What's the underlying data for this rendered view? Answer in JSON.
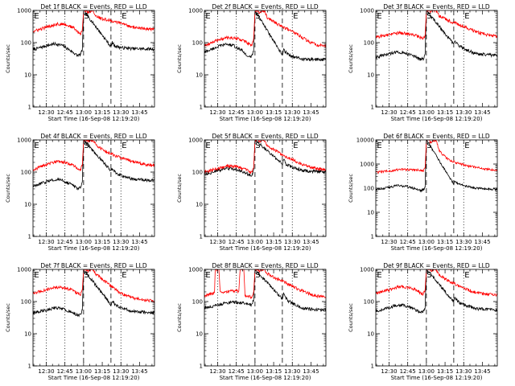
{
  "figure": {
    "time_labels": [
      "12:30",
      "12:45",
      "13:00",
      "13:15",
      "13:30",
      "13:45"
    ],
    "x_tick_minutes": [
      30,
      45,
      60,
      75,
      90,
      105
    ],
    "x_range_minutes": [
      19.33,
      117
    ],
    "dotted_lines_minutes": [
      30,
      45,
      90
    ],
    "dashed_lines_minutes": [
      60,
      82
    ],
    "region_markers": [
      {
        "label": "E",
        "minutes": 19.6
      },
      {
        "label": "S",
        "minutes": 59.6
      },
      {
        "label": "E",
        "minutes": 90.0
      }
    ],
    "ylabel": "Counts/sec",
    "xlabel": "Start Time (16-Sep-08 12:19:20)",
    "colors": {
      "events": "#000000",
      "lld": "#ff0000",
      "axes": "#000000"
    }
  },
  "chart_data": [
    {
      "type": "line",
      "title": "Det 1f BLACK = Events, RED = LLD",
      "yscale": "log",
      "ylim": [
        1,
        1000
      ],
      "ytick_labels": [
        "1",
        "10",
        "100",
        "1000"
      ],
      "series": [
        {
          "name": "BLACK = Events",
          "color": "#000000",
          "x": [
            19.3,
            30,
            37,
            43,
            50,
            55,
            57.5,
            59,
            60,
            82,
            83,
            85,
            90,
            100,
            117
          ],
          "y": [
            60,
            80,
            92,
            82,
            55,
            40,
            42,
            60,
            1000,
            75,
            100,
            80,
            70,
            65,
            63
          ]
        },
        {
          "name": "RED = LLD",
          "color": "#ff0000",
          "x": [
            19.3,
            30,
            38,
            45,
            52,
            56,
            57.5,
            59,
            60,
            62,
            63,
            67,
            68,
            70,
            75,
            80,
            85,
            90,
            95,
            100,
            105,
            110,
            117
          ],
          "y": [
            220,
            300,
            380,
            370,
            290,
            200,
            180,
            260,
            1000,
            1000,
            900,
            1000,
            950,
            650,
            550,
            500,
            450,
            400,
            350,
            300,
            280,
            270,
            260
          ]
        }
      ]
    },
    {
      "type": "line",
      "title": "Det 2f BLACK = Events, RED = LLD",
      "yscale": "log",
      "ylim": [
        1,
        1000
      ],
      "ytick_labels": [
        "1",
        "10",
        "100",
        "1000"
      ],
      "series": [
        {
          "name": "BLACK = Events",
          "color": "#000000",
          "x": [
            19.3,
            30,
            37,
            43,
            50,
            55,
            57.5,
            59,
            60,
            82,
            83,
            86,
            92,
            100,
            117
          ],
          "y": [
            50,
            75,
            90,
            80,
            55,
            35,
            38,
            60,
            1000,
            40,
            60,
            45,
            35,
            30,
            30
          ]
        },
        {
          "name": "RED = LLD",
          "color": "#ff0000",
          "x": [
            19.3,
            30,
            38,
            45,
            52,
            56,
            57.5,
            59,
            60,
            62,
            63,
            67,
            68,
            70,
            75,
            80,
            85,
            90,
            95,
            100,
            105,
            110,
            117
          ],
          "y": [
            80,
            120,
            145,
            135,
            110,
            85,
            80,
            140,
            1000,
            1000,
            850,
            1000,
            900,
            600,
            450,
            350,
            280,
            220,
            170,
            130,
            100,
            85,
            80
          ]
        }
      ]
    },
    {
      "type": "line",
      "title": "Det 3f BLACK = Events, RED = LLD",
      "yscale": "log",
      "ylim": [
        1,
        1000
      ],
      "ytick_labels": [
        "1",
        "10",
        "100",
        "1000"
      ],
      "series": [
        {
          "name": "BLACK = Events",
          "color": "#000000",
          "x": [
            19.3,
            30,
            37,
            43,
            50,
            55,
            57.5,
            59,
            60,
            82,
            83,
            86,
            92,
            100,
            117
          ],
          "y": [
            35,
            45,
            52,
            48,
            38,
            30,
            32,
            45,
            1000,
            90,
            110,
            80,
            60,
            45,
            40
          ]
        },
        {
          "name": "RED = LLD",
          "color": "#ff0000",
          "x": [
            19.3,
            30,
            38,
            45,
            52,
            56,
            57.5,
            59,
            60,
            62,
            63,
            67,
            68,
            70,
            75,
            80,
            85,
            90,
            95,
            100,
            105,
            110,
            117
          ],
          "y": [
            150,
            175,
            200,
            190,
            165,
            140,
            130,
            170,
            1000,
            1000,
            900,
            1000,
            950,
            700,
            550,
            450,
            380,
            320,
            260,
            220,
            190,
            170,
            160
          ]
        }
      ]
    },
    {
      "type": "line",
      "title": "Det 4f BLACK = Events, RED = LLD",
      "yscale": "log",
      "ylim": [
        1,
        1000
      ],
      "ytick_labels": [
        "1",
        "10",
        "100",
        "1000"
      ],
      "series": [
        {
          "name": "BLACK = Events",
          "color": "#000000",
          "x": [
            19.3,
            30,
            37,
            43,
            50,
            55,
            57.5,
            59,
            60,
            82,
            83,
            86,
            92,
            100,
            117
          ],
          "y": [
            35,
            50,
            60,
            55,
            42,
            32,
            34,
            50,
            1000,
            110,
            130,
            90,
            75,
            60,
            55
          ]
        },
        {
          "name": "RED = LLD",
          "color": "#ff0000",
          "x": [
            19.3,
            30,
            38,
            45,
            52,
            56,
            57.5,
            59,
            60,
            62,
            63,
            67,
            68,
            70,
            75,
            80,
            85,
            90,
            95,
            100,
            105,
            110,
            117
          ],
          "y": [
            120,
            170,
            210,
            200,
            160,
            125,
            115,
            170,
            1000,
            1000,
            900,
            1000,
            950,
            700,
            500,
            400,
            330,
            280,
            240,
            210,
            190,
            170,
            160
          ]
        }
      ]
    },
    {
      "type": "line",
      "title": "Det 5f BLACK = Events, RED = LLD",
      "yscale": "log",
      "ylim": [
        1,
        1000
      ],
      "ytick_labels": [
        "1",
        "10",
        "100",
        "1000"
      ],
      "series": [
        {
          "name": "BLACK = Events",
          "color": "#000000",
          "x": [
            19.3,
            30,
            37,
            43,
            50,
            55,
            57.5,
            59,
            60,
            82,
            83,
            85,
            90,
            100,
            117
          ],
          "y": [
            85,
            110,
            130,
            125,
            105,
            85,
            80,
            120,
            1000,
            180,
            250,
            180,
            140,
            110,
            100
          ]
        },
        {
          "name": "RED = LLD",
          "color": "#ff0000",
          "x": [
            19.3,
            30,
            38,
            45,
            52,
            56,
            57.5,
            59,
            60,
            62,
            63,
            67,
            68,
            70,
            75,
            80,
            85,
            90,
            95,
            100,
            105,
            110,
            117
          ],
          "y": [
            100,
            130,
            155,
            150,
            125,
            100,
            95,
            140,
            1000,
            1000,
            900,
            1000,
            950,
            650,
            500,
            380,
            300,
            250,
            200,
            160,
            140,
            130,
            120
          ]
        }
      ]
    },
    {
      "type": "line",
      "title": "Det 6f BLACK = Events, RED = LLD",
      "yscale": "log",
      "ylim": [
        1,
        10000
      ],
      "ytick_labels": [
        "1",
        "10",
        "100",
        "1000",
        "10000"
      ],
      "series": [
        {
          "name": "BLACK = Events",
          "color": "#000000",
          "x": [
            19.3,
            30,
            37,
            43,
            50,
            55,
            57.5,
            59,
            60,
            82,
            83,
            86,
            92,
            100,
            117
          ],
          "y": [
            90,
            110,
            130,
            120,
            100,
            80,
            85,
            110,
            10000,
            150,
            200,
            150,
            120,
            100,
            90
          ]
        },
        {
          "name": "RED = LLD",
          "color": "#ff0000",
          "x": [
            19.3,
            30,
            40,
            50,
            56,
            57.5,
            59,
            60,
            62,
            63,
            67,
            68,
            70,
            73,
            78,
            85,
            95,
            105,
            117
          ],
          "y": [
            450,
            520,
            600,
            580,
            550,
            520,
            700,
            10000,
            10000,
            8000,
            10000,
            9000,
            4000,
            2500,
            1500,
            1100,
            800,
            650,
            550
          ]
        }
      ]
    },
    {
      "type": "line",
      "title": "Det 7f BLACK = Events, RED = LLD",
      "yscale": "log",
      "ylim": [
        1,
        1000
      ],
      "ytick_labels": [
        "1",
        "10",
        "100",
        "1000"
      ],
      "series": [
        {
          "name": "BLACK = Events",
          "color": "#000000",
          "x": [
            19.3,
            30,
            37,
            43,
            50,
            55,
            57.5,
            59,
            60,
            82,
            83,
            86,
            92,
            100,
            117
          ],
          "y": [
            45,
            55,
            65,
            60,
            48,
            38,
            40,
            55,
            1000,
            80,
            110,
            75,
            60,
            50,
            45
          ]
        },
        {
          "name": "RED = LLD",
          "color": "#ff0000",
          "x": [
            19.3,
            30,
            38,
            45,
            52,
            56,
            57.5,
            59,
            60,
            62,
            63,
            67,
            68,
            70,
            75,
            80,
            85,
            90,
            95,
            100,
            105,
            110,
            117
          ],
          "y": [
            180,
            230,
            280,
            270,
            220,
            170,
            160,
            230,
            1000,
            1000,
            900,
            1000,
            950,
            700,
            500,
            350,
            250,
            180,
            150,
            130,
            120,
            110,
            105
          ]
        }
      ]
    },
    {
      "type": "line",
      "title": "Det 8f BLACK = Events, RED = LLD",
      "yscale": "log",
      "ylim": [
        1,
        1000
      ],
      "ytick_labels": [
        "1",
        "10",
        "100",
        "1000"
      ],
      "series": [
        {
          "name": "BLACK = Events",
          "color": "#000000",
          "x": [
            19.3,
            25,
            30,
            37,
            43,
            50,
            55,
            57.5,
            59,
            60,
            82,
            83,
            86,
            92,
            100,
            117
          ],
          "y": [
            65,
            70,
            80,
            90,
            95,
            90,
            85,
            80,
            120,
            1000,
            120,
            170,
            110,
            80,
            60,
            55
          ]
        },
        {
          "name": "RED = LLD",
          "color": "#ff0000",
          "x": [
            19.3,
            24,
            27.5,
            28,
            31,
            32,
            36,
            40,
            44,
            47,
            48,
            51,
            52,
            56,
            57.5,
            59,
            60,
            62,
            63,
            67,
            68,
            70,
            75,
            80,
            85,
            90,
            95,
            100,
            105,
            110,
            117
          ],
          "y": [
            150,
            170,
            190,
            1000,
            1000,
            190,
            200,
            210,
            215,
            210,
            1000,
            1000,
            160,
            140,
            130,
            200,
            1000,
            1000,
            900,
            1000,
            950,
            750,
            580,
            470,
            380,
            300,
            240,
            200,
            170,
            150,
            140
          ]
        }
      ]
    },
    {
      "type": "line",
      "title": "Det 9f BLACK = Events, RED = LLD",
      "yscale": "log",
      "ylim": [
        1,
        1000
      ],
      "ytick_labels": [
        "1",
        "10",
        "100",
        "1000"
      ],
      "series": [
        {
          "name": "BLACK = Events",
          "color": "#000000",
          "x": [
            19.3,
            30,
            37,
            43,
            50,
            55,
            57.5,
            59,
            60,
            82,
            83,
            86,
            92,
            100,
            117
          ],
          "y": [
            50,
            65,
            80,
            75,
            60,
            45,
            48,
            65,
            1000,
            100,
            130,
            95,
            75,
            60,
            55
          ]
        },
        {
          "name": "RED = LLD",
          "color": "#ff0000",
          "x": [
            19.3,
            30,
            38,
            45,
            52,
            56,
            57.5,
            59,
            60,
            62,
            63,
            67,
            68,
            70,
            75,
            80,
            85,
            90,
            95,
            100,
            105,
            110,
            117
          ],
          "y": [
            180,
            230,
            290,
            280,
            230,
            180,
            170,
            240,
            1000,
            1000,
            900,
            1000,
            950,
            700,
            500,
            400,
            320,
            260,
            220,
            190,
            175,
            165,
            160
          ]
        }
      ]
    }
  ]
}
